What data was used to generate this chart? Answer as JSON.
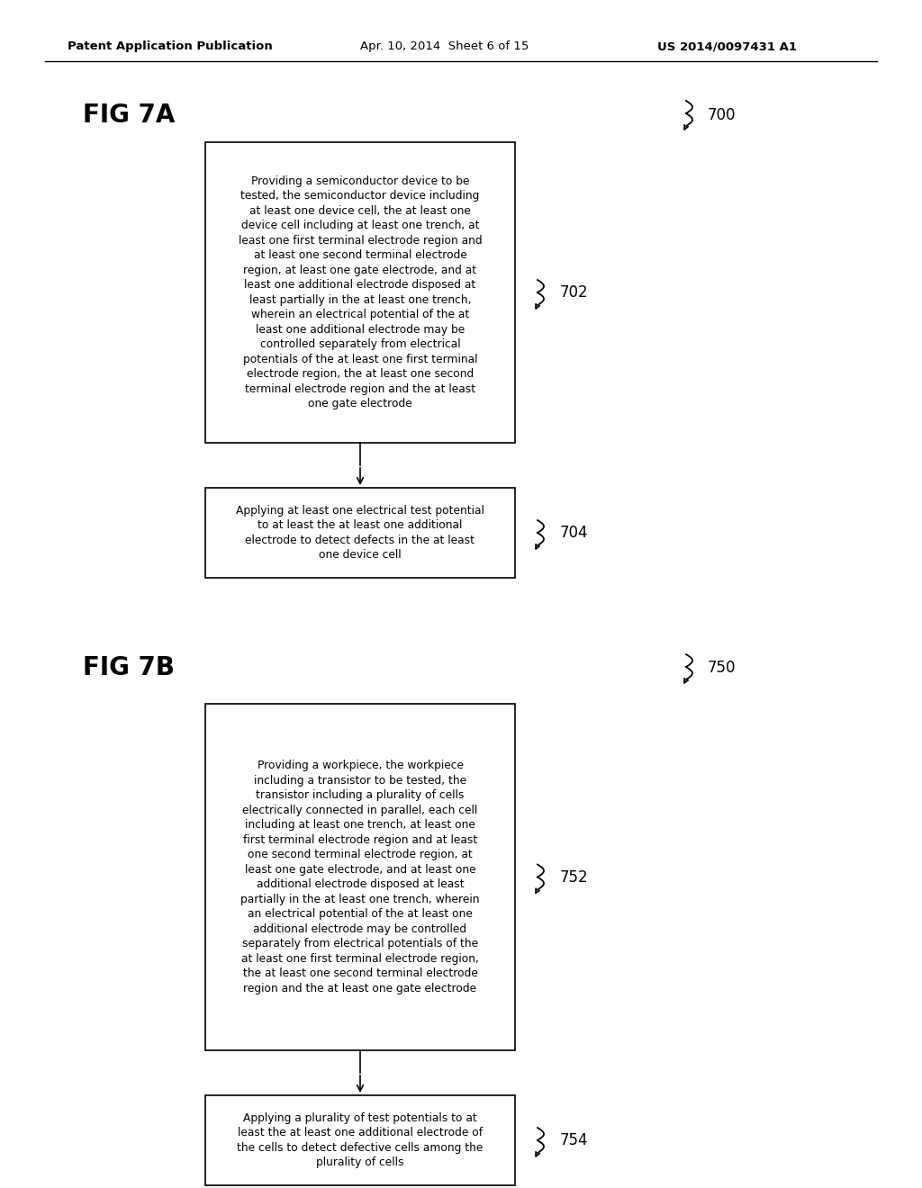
{
  "background_color": "#ffffff",
  "header_left": "Patent Application Publication",
  "header_center": "Apr. 10, 2014  Sheet 6 of 15",
  "header_right": "US 2014/0097431 A1",
  "fig7a_label": "FIG 7A",
  "fig7a_ref": "700",
  "fig7b_label": "FIG 7B",
  "fig7b_ref": "750",
  "box702_ref": "702",
  "box702_text": "Providing a semiconductor device to be\ntested, the semiconductor device including\nat least one device cell, the at least one\ndevice cell including at least one trench, at\nleast one first terminal electrode region and\nat least one second terminal electrode\nregion, at least one gate electrode, and at\nleast one additional electrode disposed at\nleast partially in the at least one trench,\nwherein an electrical potential of the at\nleast one additional electrode may be\ncontrolled separately from electrical\npotentials of the at least one first terminal\nelectrode region, the at least one second\nterminal electrode region and the at least\none gate electrode",
  "box704_ref": "704",
  "box704_text": "Applying at least one electrical test potential\nto at least the at least one additional\nelectrode to detect defects in the at least\none device cell",
  "box752_ref": "752",
  "box752_text": "Providing a workpiece, the workpiece\nincluding a transistor to be tested, the\ntransistor including a plurality of cells\nelectrically connected in parallel, each cell\nincluding at least one trench, at least one\nfirst terminal electrode region and at least\none second terminal electrode region, at\nleast one gate electrode, and at least one\nadditional electrode disposed at least\npartially in the at least one trench, wherein\nan electrical potential of the at least one\nadditional electrode may be controlled\nseparately from electrical potentials of the\nat least one first terminal electrode region,\nthe at least one second terminal electrode\nregion and the at least one gate electrode",
  "box754_ref": "754",
  "box754_text": "Applying a plurality of test potentials to at\nleast the at least one additional electrode of\nthe cells to detect defective cells among the\nplurality of cells"
}
